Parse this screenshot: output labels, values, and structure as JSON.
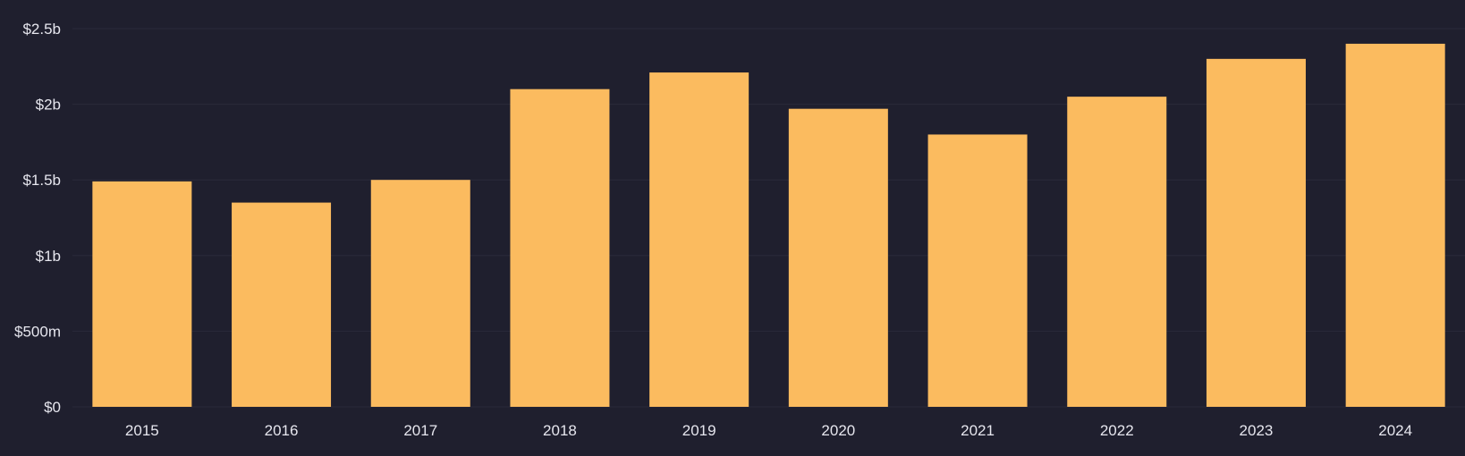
{
  "colors": {
    "background": "#1f1f2e",
    "bar": "#fbbb5f",
    "grid": "#2a2a3a",
    "tick_text": "#e6e6ee"
  },
  "chart_data": {
    "type": "bar",
    "categories": [
      "2015",
      "2016",
      "2017",
      "2018",
      "2019",
      "2020",
      "2021",
      "2022",
      "2023",
      "2024"
    ],
    "values": [
      1490000000,
      1350000000,
      1500000000,
      2100000000,
      2210000000,
      1970000000,
      1800000000,
      2050000000,
      2300000000,
      2400000000
    ],
    "ylim": [
      0,
      2500000000
    ],
    "y_ticks": [
      {
        "value": 0,
        "label": "$0"
      },
      {
        "value": 500000000,
        "label": "$500m"
      },
      {
        "value": 1000000000,
        "label": "$1b"
      },
      {
        "value": 1500000000,
        "label": "$1.5b"
      },
      {
        "value": 2000000000,
        "label": "$2b"
      },
      {
        "value": 2500000000,
        "label": "$2.5b"
      }
    ],
    "grid": true,
    "legend": "none"
  }
}
